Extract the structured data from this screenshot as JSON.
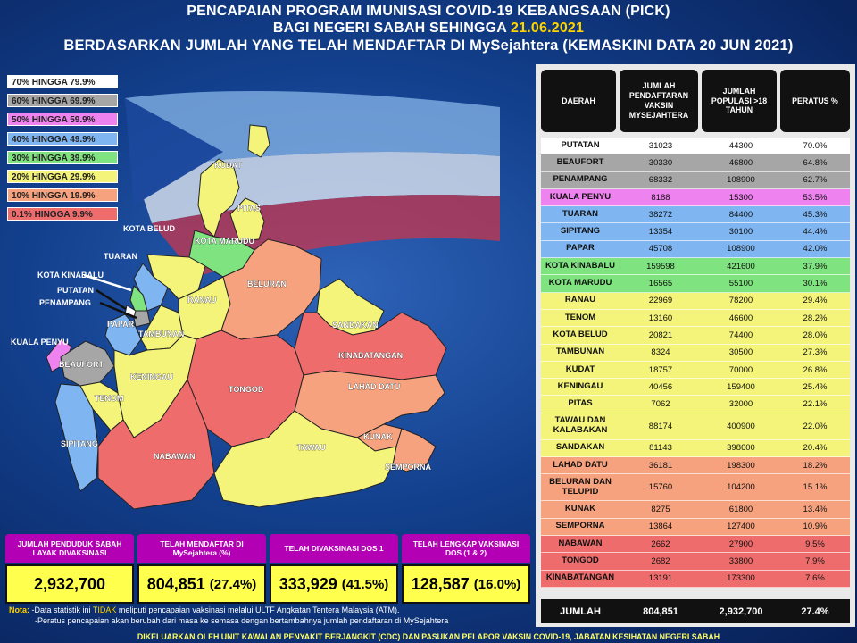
{
  "header": {
    "title1": "PENCAPAIAN PROGRAM IMUNISASI COVID-19 KEBANGSAAN (PICK)",
    "title2_prefix": "BAGI NEGERI SABAH SEHINGGA ",
    "title2_date": "21.06.2021",
    "title3": "BERDASARKAN JUMLAH YANG TELAH MENDAFTAR DI MySejahtera (KEMASKINI DATA 20 JUN 2021)"
  },
  "legend": [
    {
      "label": "70% HINGGA 79.9%",
      "color": "#ffffff"
    },
    {
      "label": "60% HINGGA 69.9%",
      "color": "#a6a6a6"
    },
    {
      "label": "50% HINGGA 59.9%",
      "color": "#ee82ee"
    },
    {
      "label": "40% HINGGA 49.9%",
      "color": "#7fb6f2"
    },
    {
      "label": "30% HINGGA 39.9%",
      "color": "#7fe37f"
    },
    {
      "label": "20% HINGGA 29.9%",
      "color": "#f4f47a"
    },
    {
      "label": "10% HINGGA 19.9%",
      "color": "#f7a27e"
    },
    {
      "label": "0.1% HINGGA 9.9%",
      "color": "#ef6c6c"
    }
  ],
  "map_labels": {
    "kudat": "KUDAT",
    "pitas": "PITAS",
    "kota_marudu": "KOTA MARUDU",
    "kota_belud": "KOTA BELUD",
    "tuaran": "TUARAN",
    "kota_kinabalu": "KOTA KINABALU",
    "putatan": "PUTATAN",
    "penampang": "PENAMPANG",
    "papar": "PAPAR",
    "kuala_penyu": "KUALA PENYU",
    "beaufort": "BEAUFORT",
    "tenom": "TENOM",
    "sipitang": "SIPITANG",
    "ranau": "RANAU",
    "tambunan": "TAMBUNAN",
    "keningau": "KENINGAU",
    "beluran": "BELURAN",
    "sandakan": "SANDAKAN",
    "kinabatangan": "KINABATANGAN",
    "tongod": "TONGOD",
    "lahad_datu": "LAHAD DATU",
    "kunak": "KUNAK",
    "tawau": "TAWAU",
    "semporna": "SEMPORNA",
    "nabawan": "NABAWAN"
  },
  "table": {
    "headers": [
      "DAERAH",
      "JUMLAH PENDAFTARAN VAKSIN MYSEJAHTERA",
      "JUMLAH POPULASI >18 TAHUN",
      "PERATUS %"
    ],
    "rows": [
      {
        "daerah": "PUTATAN",
        "daftar": "31023",
        "populasi": "44300",
        "peratus": "70.0%",
        "color": "#ffffff"
      },
      {
        "daerah": "BEAUFORT",
        "daftar": "30330",
        "populasi": "46800",
        "peratus": "64.8%",
        "color": "#a6a6a6"
      },
      {
        "daerah": "PENAMPANG",
        "daftar": "68332",
        "populasi": "108900",
        "peratus": "62.7%",
        "color": "#a6a6a6"
      },
      {
        "daerah": "KUALA PENYU",
        "daftar": "8188",
        "populasi": "15300",
        "peratus": "53.5%",
        "color": "#ee82ee"
      },
      {
        "daerah": "TUARAN",
        "daftar": "38272",
        "populasi": "84400",
        "peratus": "45.3%",
        "color": "#7fb6f2"
      },
      {
        "daerah": "SIPITANG",
        "daftar": "13354",
        "populasi": "30100",
        "peratus": "44.4%",
        "color": "#7fb6f2"
      },
      {
        "daerah": "PAPAR",
        "daftar": "45708",
        "populasi": "108900",
        "peratus": "42.0%",
        "color": "#7fb6f2"
      },
      {
        "daerah": "KOTA KINABALU",
        "daftar": "159598",
        "populasi": "421600",
        "peratus": "37.9%",
        "color": "#7fe37f"
      },
      {
        "daerah": "KOTA MARUDU",
        "daftar": "16565",
        "populasi": "55100",
        "peratus": "30.1%",
        "color": "#7fe37f"
      },
      {
        "daerah": "RANAU",
        "daftar": "22969",
        "populasi": "78200",
        "peratus": "29.4%",
        "color": "#f4f47a"
      },
      {
        "daerah": "TENOM",
        "daftar": "13160",
        "populasi": "46600",
        "peratus": "28.2%",
        "color": "#f4f47a"
      },
      {
        "daerah": "KOTA BELUD",
        "daftar": "20821",
        "populasi": "74400",
        "peratus": "28.0%",
        "color": "#f4f47a"
      },
      {
        "daerah": "TAMBUNAN",
        "daftar": "8324",
        "populasi": "30500",
        "peratus": "27.3%",
        "color": "#f4f47a"
      },
      {
        "daerah": "KUDAT",
        "daftar": "18757",
        "populasi": "70000",
        "peratus": "26.8%",
        "color": "#f4f47a"
      },
      {
        "daerah": "KENINGAU",
        "daftar": "40456",
        "populasi": "159400",
        "peratus": "25.4%",
        "color": "#f4f47a"
      },
      {
        "daerah": "PITAS",
        "daftar": "7062",
        "populasi": "32000",
        "peratus": "22.1%",
        "color": "#f4f47a"
      },
      {
        "daerah": "TAWAU DAN KALABAKAN",
        "daftar": "88174",
        "populasi": "400900",
        "peratus": "22.0%",
        "color": "#f4f47a",
        "tall": true
      },
      {
        "daerah": "SANDAKAN",
        "daftar": "81143",
        "populasi": "398600",
        "peratus": "20.4%",
        "color": "#f4f47a"
      },
      {
        "daerah": "LAHAD DATU",
        "daftar": "36181",
        "populasi": "198300",
        "peratus": "18.2%",
        "color": "#f7a27e"
      },
      {
        "daerah": "BELURAN DAN TELUPID",
        "daftar": "15760",
        "populasi": "104200",
        "peratus": "15.1%",
        "color": "#f7a27e",
        "tall": true
      },
      {
        "daerah": "KUNAK",
        "daftar": "8275",
        "populasi": "61800",
        "peratus": "13.4%",
        "color": "#f7a27e"
      },
      {
        "daerah": "SEMPORNA",
        "daftar": "13864",
        "populasi": "127400",
        "peratus": "10.9%",
        "color": "#f7a27e"
      },
      {
        "daerah": "NABAWAN",
        "daftar": "2662",
        "populasi": "27900",
        "peratus": "9.5%",
        "color": "#ef6c6c"
      },
      {
        "daerah": "TONGOD",
        "daftar": "2682",
        "populasi": "33800",
        "peratus": "7.9%",
        "color": "#ef6c6c"
      },
      {
        "daerah": "KINABATANGAN",
        "daftar": "13191",
        "populasi": "173300",
        "peratus": "7.6%",
        "color": "#ef6c6c"
      }
    ],
    "total": {
      "label": "JUMLAH",
      "daftar": "804,851",
      "populasi": "2,932,700",
      "peratus": "27.4%"
    }
  },
  "stats": [
    {
      "label": "JUMLAH PENDUDUK SABAH LAYAK DIVAKSINASI",
      "value": "2,932,700",
      "pct": ""
    },
    {
      "label": "TELAH MENDAFTAR DI MySejahtera (%)",
      "value": "804,851",
      "pct": "(27.4%)"
    },
    {
      "label": "TELAH DIVAKSINASI DOS 1",
      "value": "333,929",
      "pct": "(41.5%)"
    },
    {
      "label": "TELAH LENGKAP VAKSINASI DOS (1 & 2)",
      "value": "128,587",
      "pct": "(16.0%)"
    }
  ],
  "note": {
    "label": "Nota:",
    "line1_a": " -Data statistik ini ",
    "line1_hl": "TIDAK",
    "line1_b": " meliputi pencapaian vaksinasi melalui ULTF Angkatan Tentera Malaysia (ATM).",
    "line2": "-Peratus pencapaian akan berubah dari masa ke semasa dengan bertambahnya jumlah pendaftaran di MySejahtera"
  },
  "footer": "DIKELUARKAN OLEH UNIT KAWALAN PENYAKIT BERJANGKIT (CDC) DAN PASUKAN PELAPOR VAKSIN COVID-19, JABATAN KESIHATAN NEGERI SABAH"
}
